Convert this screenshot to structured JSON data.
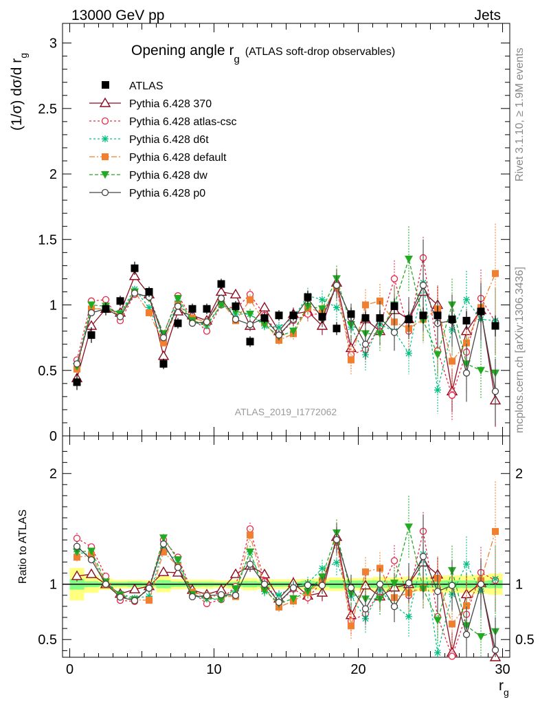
{
  "header": {
    "left": "13000 GeV pp",
    "right": "Jets",
    "side_top": "Rivet 3.1.10, ≥ 1.9M events",
    "side_bottom": "mcplots.cern.ch [arXiv:1306.3436]"
  },
  "chart_data": {
    "type": "line",
    "title_main": "Opening angle r",
    "title_sub": "g",
    "title_detail": "(ATLAS soft-drop observables)",
    "watermark": "ATLAS_2019_I1772062",
    "ylabel_main": "(1/σ) dσ/d r",
    "ylabel_sub": "g",
    "ratio_ylabel": "Ratio to ATLAS",
    "xlabel": "r",
    "xlabel_sub": "g",
    "xlim": [
      -0.5,
      30.5
    ],
    "ylim": [
      0,
      3.15
    ],
    "ratio_ylim": [
      0.34,
      2.34
    ],
    "x_ticks": [
      "0",
      "10",
      "20",
      "30"
    ],
    "y_ticks": [
      "0",
      "0.5",
      "1",
      "1.5",
      "2",
      "2.5",
      "3"
    ],
    "ratio_ticks": [
      "0.5",
      "1",
      "2"
    ],
    "legend_position": "top-left",
    "x": [
      0.5,
      1.5,
      2.5,
      3.5,
      4.5,
      5.5,
      6.5,
      7.5,
      8.5,
      9.5,
      10.5,
      11.5,
      12.5,
      13.5,
      14.5,
      15.5,
      16.5,
      17.5,
      18.5,
      19.5,
      20.5,
      21.5,
      22.5,
      23.5,
      24.5,
      25.5,
      26.5,
      27.5,
      28.5,
      29.5
    ],
    "data": {
      "name": "ATLAS",
      "values": [
        0.41,
        0.77,
        0.97,
        1.03,
        1.28,
        1.1,
        0.55,
        0.86,
        0.97,
        0.97,
        1.16,
        0.99,
        0.72,
        0.9,
        0.92,
        0.92,
        1.06,
        0.91,
        0.82,
        0.93,
        0.9,
        0.9,
        0.99,
        0.89,
        0.92,
        0.92,
        0.89,
        0.88,
        0.95,
        0.84
      ],
      "err_inner": [
        0.02,
        0.02,
        0.02,
        0.02,
        0.03,
        0.02,
        0.02,
        0.02,
        0.02,
        0.02,
        0.02,
        0.02,
        0.02,
        0.02,
        0.02,
        0.02,
        0.03,
        0.02,
        0.03,
        0.03,
        0.03,
        0.03,
        0.03,
        0.03,
        0.03,
        0.03,
        0.03,
        0.03,
        0.03,
        0.03
      ],
      "err_outer": [
        0.06,
        0.06,
        0.05,
        0.04,
        0.05,
        0.04,
        0.04,
        0.04,
        0.04,
        0.04,
        0.04,
        0.04,
        0.04,
        0.04,
        0.04,
        0.04,
        0.05,
        0.05,
        0.05,
        0.05,
        0.05,
        0.06,
        0.06,
        0.06,
        0.06,
        0.07,
        0.07,
        0.07,
        0.08,
        0.08
      ]
    },
    "series": [
      {
        "name": "Pythia 6.428 370",
        "color": "#8b0a1e",
        "dash": "",
        "marker": "triangle-open",
        "values": [
          0.44,
          0.84,
          0.97,
          0.94,
          1.22,
          1.08,
          0.61,
          0.95,
          0.92,
          0.88,
          1.1,
          1.08,
          0.84,
          0.98,
          0.8,
          0.93,
          0.95,
          0.84,
          1.17,
          0.67,
          0.89,
          0.8,
          0.96,
          0.89,
          1.1,
          1.0,
          0.34,
          0.8,
          0.96,
          0.27
        ],
        "err": [
          0.02,
          0.02,
          0.02,
          0.02,
          0.02,
          0.02,
          0.02,
          0.02,
          0.02,
          0.02,
          0.03,
          0.03,
          0.04,
          0.04,
          0.04,
          0.05,
          0.06,
          0.07,
          0.1,
          0.1,
          0.1,
          0.11,
          0.12,
          0.13,
          0.14,
          0.15,
          0.16,
          0.17,
          0.18,
          0.2
        ]
      },
      {
        "name": "Pythia 6.428 atlas-csc",
        "color": "#ee2244",
        "dash": "3,3",
        "marker": "circle-open",
        "values": [
          0.58,
          1.03,
          1.04,
          0.88,
          1.08,
          1.07,
          0.77,
          1.07,
          0.9,
          0.8,
          1.0,
          0.97,
          1.08,
          0.92,
          0.77,
          0.88,
          0.93,
          0.93,
          1.13,
          0.62,
          0.66,
          0.84,
          1.2,
          0.8,
          1.36,
          0.65,
          0.31,
          0.64,
          1.05,
          0.87
        ],
        "err": [
          0.02,
          0.02,
          0.02,
          0.02,
          0.02,
          0.02,
          0.02,
          0.02,
          0.02,
          0.02,
          0.03,
          0.03,
          0.04,
          0.04,
          0.04,
          0.05,
          0.06,
          0.07,
          0.1,
          0.11,
          0.12,
          0.13,
          0.14,
          0.16,
          0.16,
          0.18,
          0.2,
          0.22,
          0.22,
          0.25
        ]
      },
      {
        "name": "Pythia 6.428 d6t",
        "color": "#00c080",
        "dash": "3,3",
        "marker": "star",
        "values": [
          0.53,
          0.97,
          0.97,
          0.94,
          1.12,
          0.98,
          0.73,
          1.03,
          0.87,
          0.84,
          1.0,
          0.93,
          0.93,
          0.84,
          0.83,
          0.9,
          1.07,
          1.04,
          0.98,
          0.83,
          0.62,
          0.85,
          0.8,
          0.63,
          1.17,
          0.35,
          0.81,
          1.04,
          0.89,
          0.88
        ],
        "err": [
          0.02,
          0.02,
          0.02,
          0.02,
          0.02,
          0.02,
          0.02,
          0.02,
          0.02,
          0.02,
          0.03,
          0.03,
          0.04,
          0.04,
          0.04,
          0.05,
          0.06,
          0.07,
          0.1,
          0.11,
          0.12,
          0.13,
          0.14,
          0.16,
          0.17,
          0.18,
          0.2,
          0.22,
          0.22,
          0.25
        ]
      },
      {
        "name": "Pythia 6.428 default",
        "color": "#f08030",
        "dash": "8,3,2,3",
        "marker": "square",
        "values": [
          0.51,
          0.97,
          0.97,
          0.93,
          1.1,
          0.94,
          0.71,
          1.0,
          0.9,
          0.87,
          1.03,
          0.88,
          1.04,
          0.87,
          0.73,
          0.78,
          0.98,
          0.94,
          1.14,
          0.58,
          1.0,
          1.03,
          0.87,
          0.82,
          0.89,
          0.97,
          0.57,
          0.71,
          0.98,
          1.24
        ],
        "err": [
          0.02,
          0.02,
          0.02,
          0.02,
          0.02,
          0.02,
          0.02,
          0.02,
          0.02,
          0.02,
          0.03,
          0.03,
          0.04,
          0.04,
          0.04,
          0.05,
          0.06,
          0.07,
          0.1,
          0.11,
          0.12,
          0.13,
          0.14,
          0.16,
          0.17,
          0.18,
          0.2,
          0.22,
          0.22,
          0.38
        ]
      },
      {
        "name": "Pythia 6.428 dw",
        "color": "#22aa22",
        "dash": "5,3",
        "marker": "triangle-down",
        "values": [
          0.53,
          1.0,
          0.99,
          0.93,
          1.1,
          1.05,
          0.78,
          1.05,
          0.88,
          0.85,
          1.0,
          0.95,
          0.93,
          0.85,
          0.76,
          0.8,
          0.99,
          0.97,
          1.2,
          0.85,
          0.78,
          0.78,
          1.0,
          1.35,
          0.88,
          0.62,
          1.0,
          0.55,
          0.5,
          0.48
        ],
        "err": [
          0.02,
          0.02,
          0.02,
          0.02,
          0.02,
          0.02,
          0.02,
          0.02,
          0.02,
          0.02,
          0.03,
          0.03,
          0.04,
          0.04,
          0.04,
          0.05,
          0.06,
          0.07,
          0.1,
          0.11,
          0.12,
          0.13,
          0.14,
          0.25,
          0.17,
          0.18,
          0.2,
          0.22,
          0.22,
          0.25
        ]
      },
      {
        "name": "Pythia 6.428 p0",
        "color": "#444444",
        "dash": "",
        "marker": "circle-open",
        "values": [
          0.55,
          0.94,
          0.97,
          0.91,
          1.09,
          1.06,
          0.75,
          0.99,
          0.86,
          0.87,
          1.05,
          0.89,
          0.85,
          0.9,
          0.77,
          0.89,
          1.05,
          0.9,
          1.15,
          0.9,
          0.7,
          0.9,
          0.79,
          0.9,
          1.15,
          0.86,
          0.88,
          0.48,
          0.95,
          0.34
        ],
        "err": [
          0.02,
          0.02,
          0.02,
          0.02,
          0.02,
          0.02,
          0.02,
          0.02,
          0.02,
          0.02,
          0.03,
          0.03,
          0.04,
          0.04,
          0.04,
          0.05,
          0.06,
          0.07,
          0.1,
          0.11,
          0.12,
          0.13,
          0.14,
          0.16,
          0.35,
          0.18,
          0.2,
          0.22,
          0.22,
          0.25
        ]
      }
    ]
  }
}
